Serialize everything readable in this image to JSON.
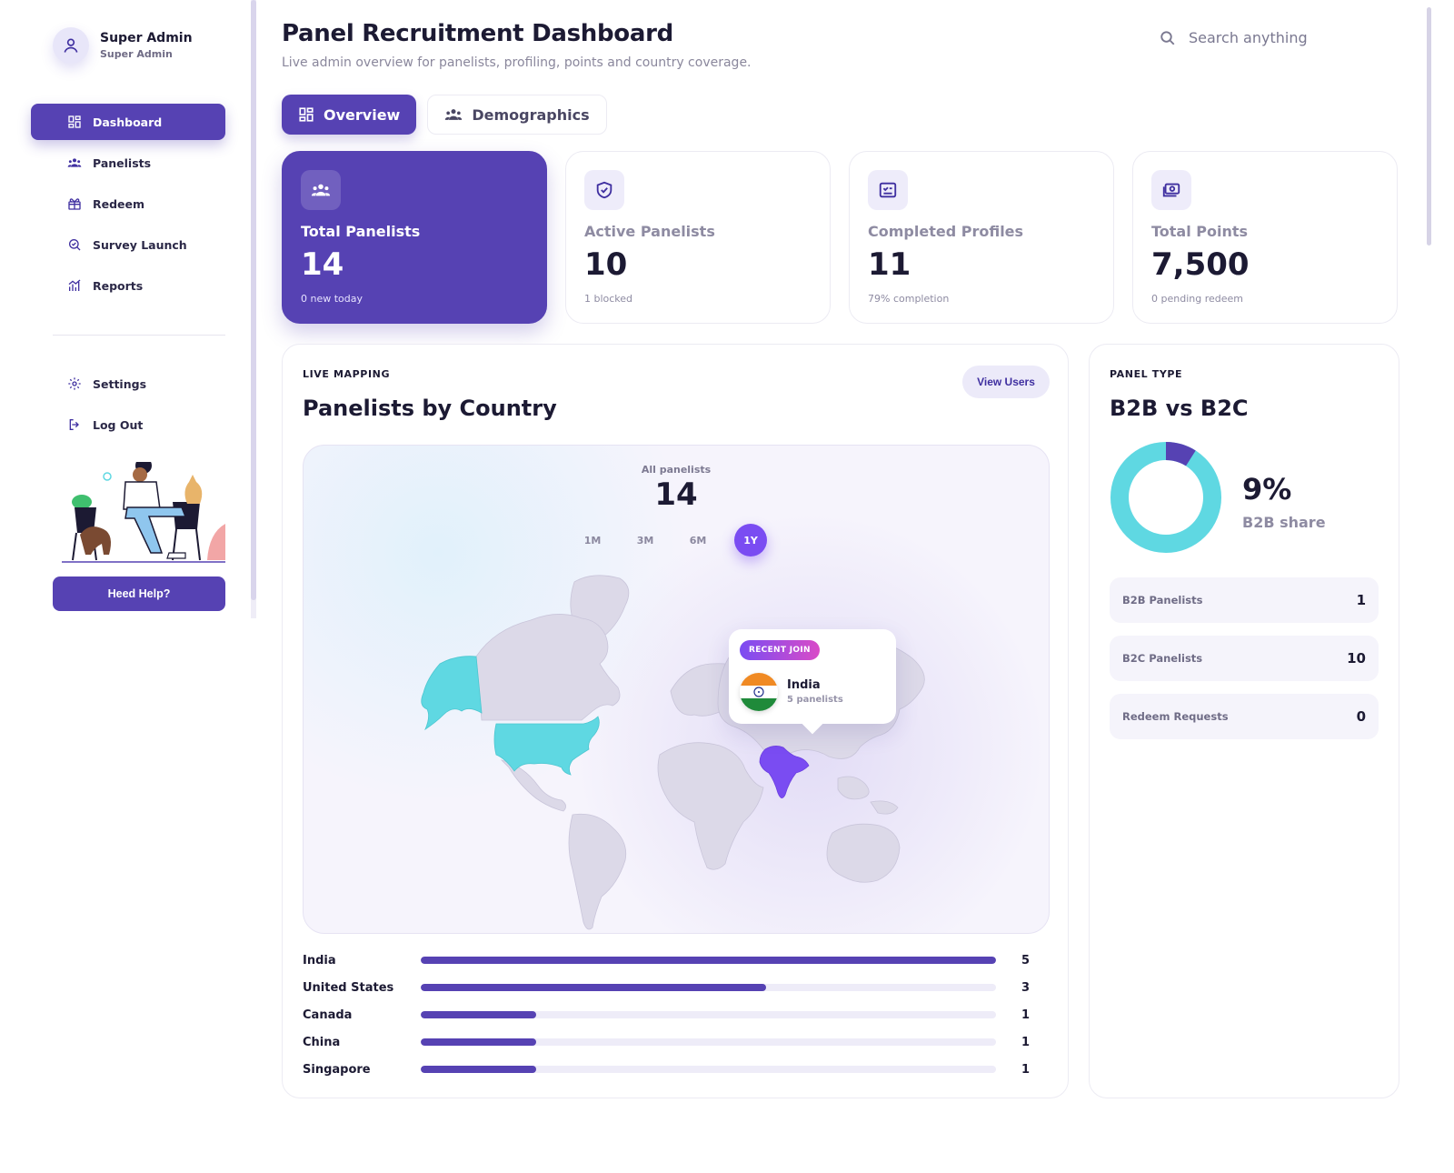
{
  "user": {
    "name": "Super Admin",
    "role": "Super Admin"
  },
  "nav": {
    "items": [
      {
        "label": "Dashboard",
        "icon": "dashboard-icon",
        "active": true
      },
      {
        "label": "Panelists",
        "icon": "users-icon",
        "active": false
      },
      {
        "label": "Redeem",
        "icon": "gift-icon",
        "active": false
      },
      {
        "label": "Survey Launch",
        "icon": "survey-search-icon",
        "active": false
      },
      {
        "label": "Reports",
        "icon": "chart-icon",
        "active": false
      }
    ],
    "secondary": [
      {
        "label": "Settings",
        "icon": "gear-icon"
      },
      {
        "label": "Log Out",
        "icon": "logout-icon"
      }
    ],
    "help_label": "Heed Help?"
  },
  "header": {
    "title": "Panel Recruitment Dashboard",
    "subtitle": "Live admin overview for panelists, profiling, points and country coverage.",
    "search_placeholder": "Search anything"
  },
  "tabs": [
    {
      "label": "Overview",
      "active": true
    },
    {
      "label": "Demographics",
      "active": false
    }
  ],
  "stats": [
    {
      "label": "Total Panelists",
      "value": "14",
      "sub": "0 new today",
      "icon": "users-icon"
    },
    {
      "label": "Active Panelists",
      "value": "10",
      "sub": "1 blocked",
      "icon": "shield-check-icon"
    },
    {
      "label": "Completed Profiles",
      "value": "11",
      "sub": "79% completion",
      "icon": "checklist-icon"
    },
    {
      "label": "Total Points",
      "value": "7,500",
      "sub": "0 pending redeem",
      "icon": "money-icon"
    }
  ],
  "map": {
    "kicker": "LIVE MAPPING",
    "title": "Panelists by Country",
    "view_users_label": "View Users",
    "all_label": "All panelists",
    "all_value": "14",
    "ranges": [
      {
        "label": "1M",
        "active": false
      },
      {
        "label": "3M",
        "active": false
      },
      {
        "label": "6M",
        "active": false
      },
      {
        "label": "1Y",
        "active": true
      }
    ],
    "tooltip": {
      "badge": "RECENT JOIN",
      "country": "India",
      "count": "5 panelists"
    },
    "colors": {
      "highlight_cyan": "#5fd8e2",
      "highlight_purple": "#7a4cf2",
      "land": "#dcd9e8"
    },
    "countries": [
      {
        "name": "India",
        "count": 5
      },
      {
        "name": "United States",
        "count": 3
      },
      {
        "name": "Canada",
        "count": 1
      },
      {
        "name": "China",
        "count": 1
      },
      {
        "name": "Singapore",
        "count": 1
      }
    ]
  },
  "panel_type": {
    "kicker": "PANEL TYPE",
    "title": "B2B vs B2C",
    "share_value": "9%",
    "share_label": "B2B share",
    "b2b_fraction": 0.09,
    "colors": {
      "b2b": "#5642b3",
      "b2c": "#5fd8e2"
    },
    "rows": [
      {
        "label": "B2B Panelists",
        "value": "1"
      },
      {
        "label": "B2C Panelists",
        "value": "10"
      },
      {
        "label": "Redeem Requests",
        "value": "0"
      }
    ]
  }
}
